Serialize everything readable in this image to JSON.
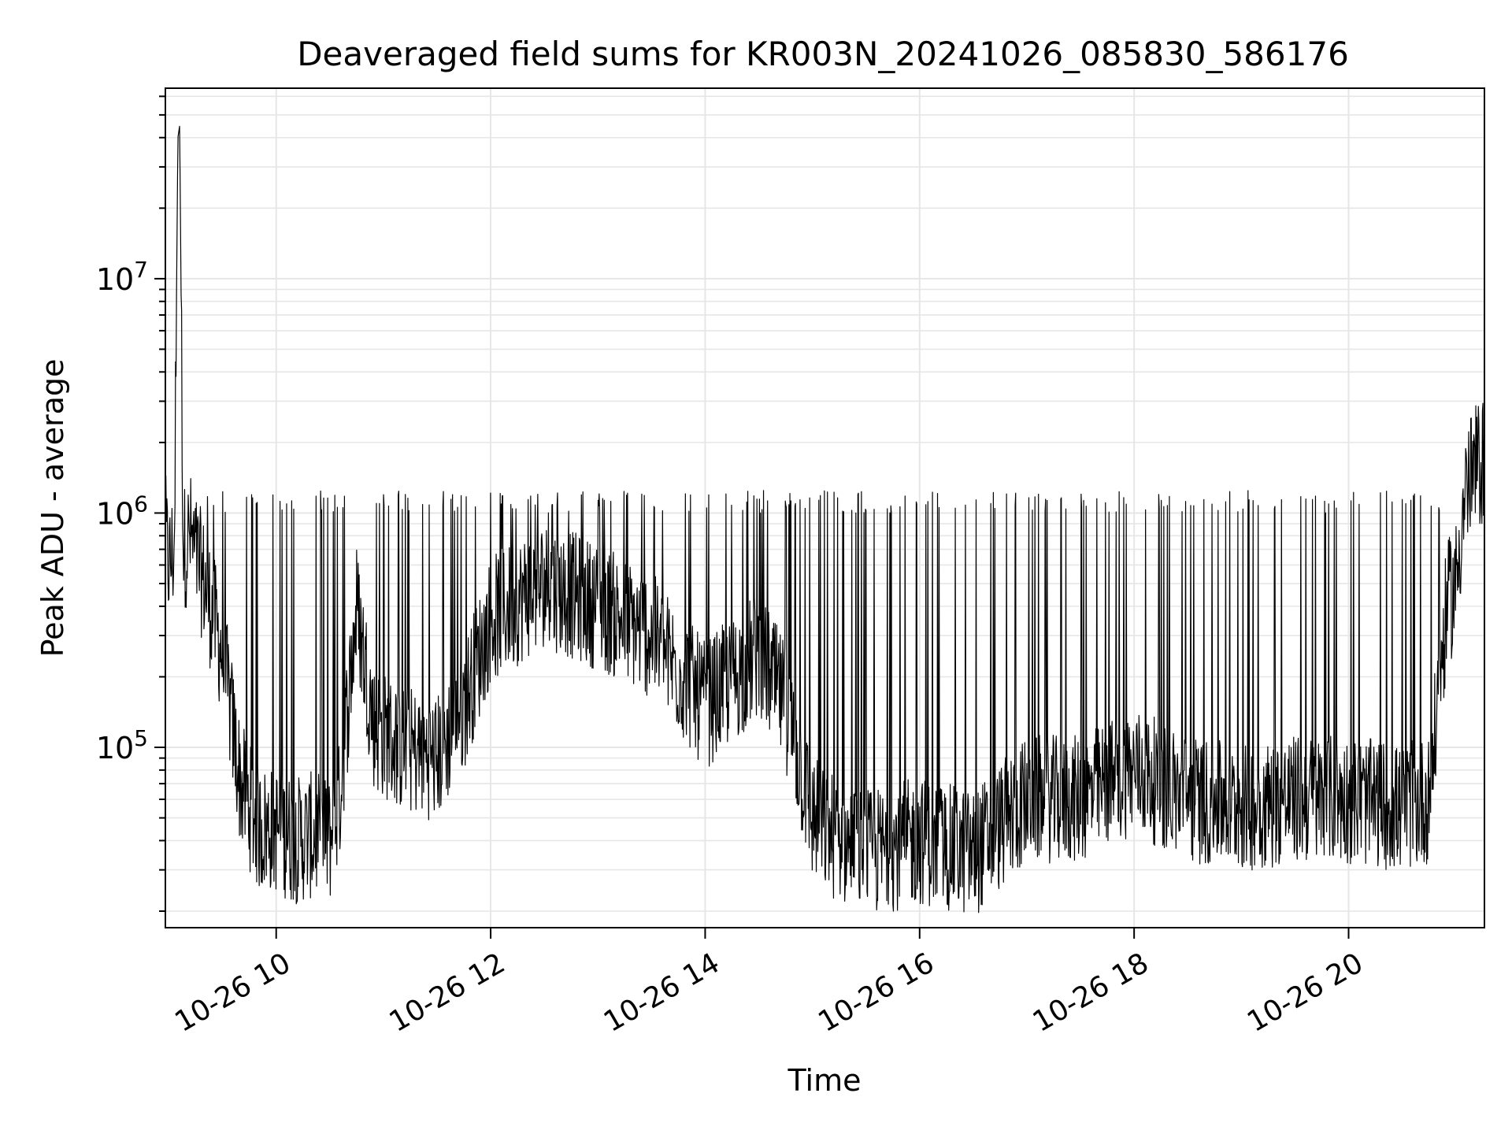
{
  "chart_data": {
    "type": "line",
    "title": "Deaveraged field sums for KR003N_20241026_085830_586176",
    "xlabel": "Time",
    "ylabel": "Peak ADU - average",
    "yscale": "log",
    "grid": true,
    "grid_minor": true,
    "line_color": "#000000",
    "grid_color": "#e6e6e6",
    "xlim": [
      "2024-10-26 08:58",
      "2024-10-26 21:16"
    ],
    "ylim": [
      17000,
      65000000
    ],
    "x_ticks": [
      {
        "value": "2024-10-26 10:00",
        "label": "10-26 10"
      },
      {
        "value": "2024-10-26 12:00",
        "label": "10-26 12"
      },
      {
        "value": "2024-10-26 14:00",
        "label": "10-26 14"
      },
      {
        "value": "2024-10-26 16:00",
        "label": "10-26 16"
      },
      {
        "value": "2024-10-26 18:00",
        "label": "10-26 18"
      },
      {
        "value": "2024-10-26 20:00",
        "label": "10-26 20"
      }
    ],
    "y_ticks": [
      {
        "value": 100000,
        "base": "10",
        "exp": "5"
      },
      {
        "value": 1000000,
        "base": "10",
        "exp": "6"
      },
      {
        "value": 10000000,
        "base": "10",
        "exp": "7"
      }
    ],
    "series": [
      {
        "x": [
          "2024-10-26 08:58",
          "2024-10-26 09:00",
          "2024-10-26 09:03",
          "2024-10-26 09:05",
          "2024-10-26 09:06",
          "2024-10-26 09:08",
          "2024-10-26 09:12",
          "2024-10-26 09:15",
          "2024-10-26 09:20",
          "2024-10-26 09:30",
          "2024-10-26 09:40",
          "2024-10-26 09:50",
          "2024-10-26 10:00",
          "2024-10-26 10:10",
          "2024-10-26 10:20",
          "2024-10-26 10:30",
          "2024-10-26 10:35",
          "2024-10-26 10:45",
          "2024-10-26 10:55",
          "2024-10-26 11:10",
          "2024-10-26 11:30",
          "2024-10-26 11:45",
          "2024-10-26 12:00",
          "2024-10-26 12:30",
          "2024-10-26 13:00",
          "2024-10-26 13:30",
          "2024-10-26 14:00",
          "2024-10-26 14:30",
          "2024-10-26 14:45",
          "2024-10-26 15:00",
          "2024-10-26 15:15",
          "2024-10-26 15:30",
          "2024-10-26 16:00",
          "2024-10-26 16:30",
          "2024-10-26 17:00",
          "2024-10-26 17:30",
          "2024-10-26 18:00",
          "2024-10-26 18:30",
          "2024-10-26 19:00",
          "2024-10-26 19:30",
          "2024-10-26 20:00",
          "2024-10-26 20:30",
          "2024-10-26 20:45",
          "2024-10-26 20:55",
          "2024-10-26 21:00",
          "2024-10-26 21:05",
          "2024-10-26 21:10",
          "2024-10-26 21:16"
        ],
        "y": [
          800000,
          600000,
          700000,
          40000000,
          45000000,
          700000,
          800000,
          650000,
          500000,
          250000,
          70000,
          45000,
          45000,
          40000,
          42000,
          40000,
          55000,
          400000,
          120000,
          100000,
          90000,
          150000,
          350000,
          500000,
          400000,
          300000,
          150000,
          250000,
          150000,
          50000,
          40000,
          35000,
          40000,
          35000,
          60000,
          60000,
          80000,
          60000,
          55000,
          60000,
          60000,
          55000,
          60000,
          400000,
          500000,
          1200000,
          1500000,
          1700000
        ]
      }
    ]
  }
}
